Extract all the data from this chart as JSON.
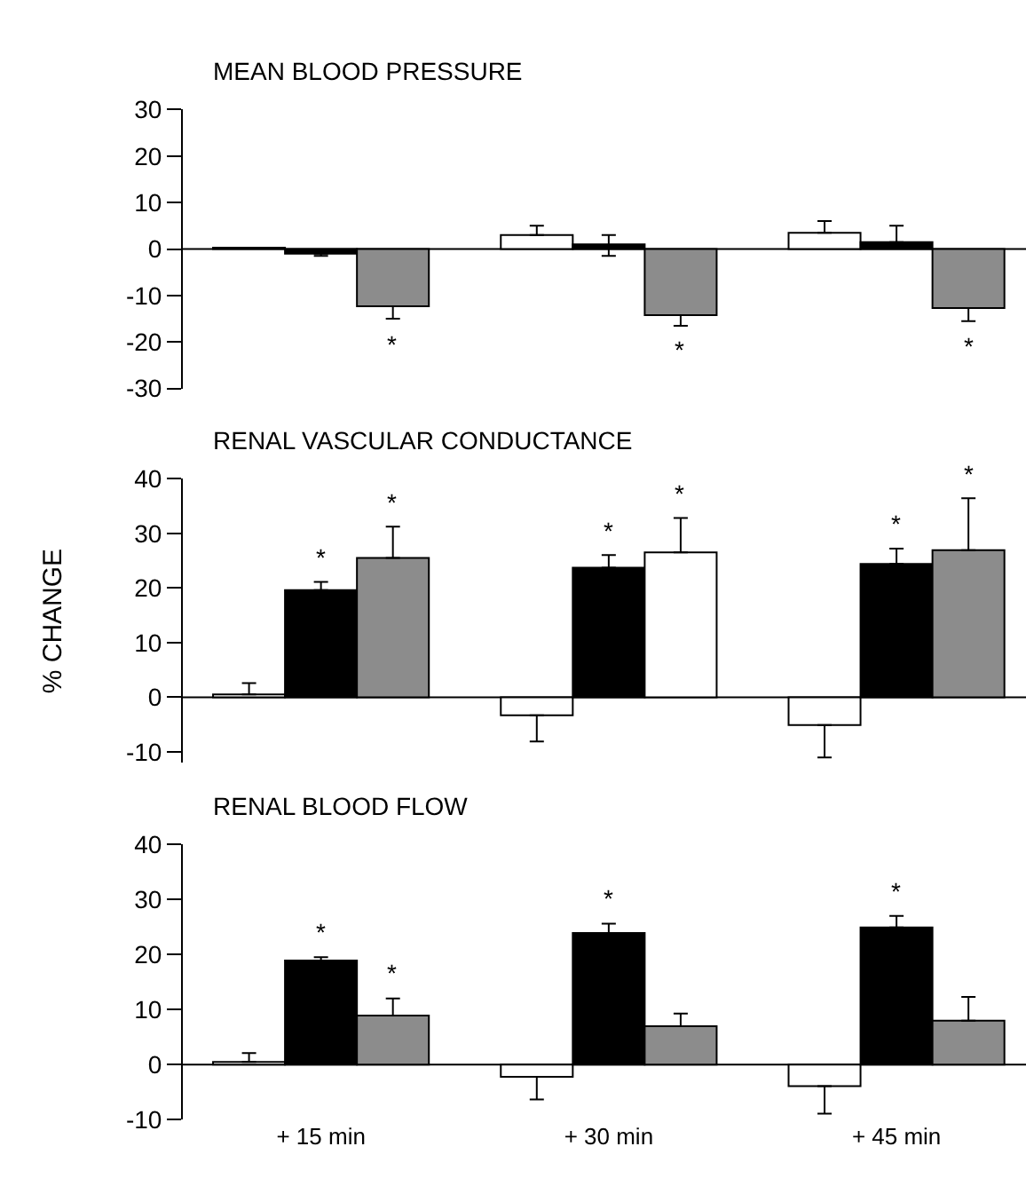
{
  "chart_data": [
    {
      "type": "bar",
      "title": "MEAN BLOOD PRESSURE",
      "ylim": [
        -30,
        30
      ],
      "yticks": [
        -30,
        -20,
        -10,
        0,
        10,
        20,
        30
      ],
      "tick_labels": "y",
      "series": [
        {
          "color": "#ffffff",
          "values": [
            0.3,
            3,
            3.5
          ],
          "errors": [
            null,
            [
              3,
              5
            ],
            [
              3.5,
              6
            ]
          ],
          "value_labels": [
            null,
            null,
            null
          ]
        },
        {
          "color": "#000000",
          "values": [
            -1,
            1,
            1.5
          ],
          "errors": [
            [
              -1.5,
              -1
            ],
            [
              -1.5,
              3
            ],
            [
              1.5,
              5
            ]
          ],
          "value_labels": [
            null,
            null,
            null
          ]
        },
        {
          "color": "#8c8c8c",
          "values": [
            -12.3,
            -14.2,
            -12.7
          ],
          "errors": [
            [
              -15,
              -12.3
            ],
            [
              -16.5,
              -14.2
            ],
            [
              -15.5,
              -12.7
            ]
          ],
          "value_labels": [
            "*",
            "*",
            "*"
          ]
        }
      ]
    },
    {
      "type": "bar",
      "title": "RENAL VASCULAR CONDUCTANCE",
      "ylabel": "% CHANGE",
      "ylim": [
        -12,
        40
      ],
      "yticks": [
        -10,
        0,
        10,
        20,
        30,
        40
      ],
      "tick_labels": "y",
      "series": [
        {
          "color": "#ffffff",
          "values": [
            0.5,
            -3.3,
            -5.1
          ],
          "errors": [
            [
              0.5,
              2.6
            ],
            [
              -8.1,
              -3.3
            ],
            [
              -11,
              -5.1
            ]
          ],
          "value_labels": [
            null,
            null,
            null
          ]
        },
        {
          "color": "#000000",
          "values": [
            19.6,
            23.7,
            24.4
          ],
          "errors": [
            [
              19.6,
              21.1
            ],
            [
              23.7,
              26
            ],
            [
              24.4,
              27.2
            ]
          ],
          "value_labels": [
            "*",
            "*",
            "*"
          ]
        },
        {
          "colors": [
            "#8c8c8c",
            "#ffffff",
            "#8c8c8c"
          ],
          "values": [
            25.5,
            26.5,
            26.9
          ],
          "errors": [
            [
              25.5,
              31.2
            ],
            [
              26.5,
              32.8
            ],
            [
              26.9,
              36.4
            ]
          ],
          "value_labels": [
            "*",
            "*",
            "*"
          ]
        }
      ]
    },
    {
      "type": "bar",
      "title": "RENAL BLOOD FLOW",
      "categories": [
        "+ 15 min",
        "+ 30 min",
        "+ 45 min"
      ],
      "ylim": [
        -10,
        40
      ],
      "yticks": [
        -10,
        0,
        10,
        20,
        30,
        40
      ],
      "series": [
        {
          "color": "#ffffff",
          "values": [
            0.5,
            -2.2,
            -3.9
          ],
          "errors": [
            [
              0.5,
              2.1
            ],
            [
              -6.3,
              -2.2
            ],
            [
              -8.9,
              -3.9
            ]
          ],
          "value_labels": [
            null,
            null,
            null
          ]
        },
        {
          "color": "#000000",
          "values": [
            18.9,
            23.9,
            24.9
          ],
          "errors": [
            [
              18.9,
              19.5
            ],
            [
              23.9,
              25.6
            ],
            [
              24.9,
              27
            ]
          ],
          "value_labels": [
            "*",
            "*",
            "*"
          ]
        },
        {
          "color": "#8c8c8c",
          "values": [
            8.9,
            7,
            8
          ],
          "errors": [
            [
              8.9,
              12
            ],
            [
              7,
              9.3
            ],
            [
              8,
              12.3
            ]
          ],
          "value_labels": [
            "*",
            null,
            null
          ]
        }
      ]
    }
  ]
}
